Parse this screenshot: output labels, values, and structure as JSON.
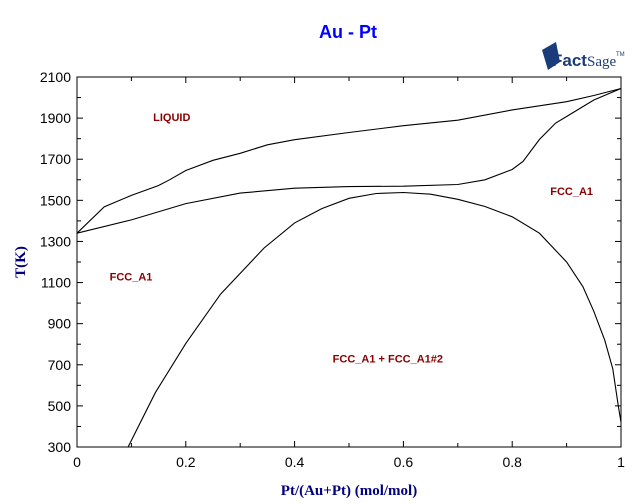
{
  "chart_data": {
    "type": "line",
    "title": "Au - Pt",
    "xlabel": "Pt/(Au+Pt) (mol/mol)",
    "ylabel": "T(K)",
    "xlim": [
      0,
      1
    ],
    "ylim": [
      300,
      2100
    ],
    "xticks": [
      0,
      0.2,
      0.4,
      0.6,
      0.8,
      1
    ],
    "xtick_labels": [
      "0",
      "0.2",
      "0.4",
      "0.6",
      "0.8",
      "1"
    ],
    "yticks": [
      300,
      500,
      700,
      900,
      1100,
      1300,
      1500,
      1700,
      1900,
      2100
    ],
    "ytick_labels": [
      "300",
      "500",
      "700",
      "900",
      "1100",
      "1300",
      "1500",
      "1700",
      "1900",
      "2100"
    ],
    "grid": false,
    "line_color": "#000000",
    "series": [
      {
        "x": [
          0,
          0.05,
          0.1,
          0.15,
          0.17,
          0.2,
          0.25,
          0.3,
          0.35,
          0.4,
          0.5,
          0.6,
          0.7,
          0.8,
          0.85,
          0.9,
          0.95,
          1
        ],
        "y": [
          1340,
          1468,
          1524,
          1572,
          1600,
          1645,
          1695,
          1729,
          1770,
          1795,
          1830,
          1863,
          1890,
          1940,
          1960,
          1980,
          2010,
          2044
        ]
      },
      {
        "x": [
          0,
          0.1,
          0.2,
          0.3,
          0.4,
          0.5,
          0.6,
          0.7,
          0.75,
          0.8,
          0.82,
          0.85,
          0.88,
          0.9,
          0.95,
          1
        ],
        "y": [
          1340,
          1405,
          1484,
          1535,
          1559,
          1567,
          1569,
          1577,
          1600,
          1650,
          1690,
          1796,
          1876,
          1908,
          1988,
          2044
        ]
      },
      {
        "x": [
          0.094,
          0.144,
          0.2,
          0.264,
          0.344,
          0.4,
          0.45,
          0.5,
          0.55,
          0.6,
          0.65,
          0.7,
          0.75,
          0.8,
          0.85,
          0.9,
          0.93,
          0.95,
          0.97,
          0.985,
          0.995,
          1
        ],
        "y": [
          300,
          564,
          804,
          1044,
          1268,
          1390,
          1460,
          1510,
          1533,
          1538,
          1530,
          1505,
          1470,
          1420,
          1340,
          1200,
          1080,
          960,
          820,
          680,
          500,
          420
        ]
      }
    ],
    "annotations": [
      {
        "text": "LIQUID",
        "x": 0.14,
        "y": 1885
      },
      {
        "text": "FCC_A1",
        "x": 0.06,
        "y": 1110
      },
      {
        "text": "FCC_A1",
        "x": 0.87,
        "y": 1525
      },
      {
        "text": "FCC_A1 + FCC_A1#2",
        "x": 0.47,
        "y": 710
      }
    ]
  },
  "logo": {
    "text_bold": "Fact",
    "text_light": "Sage",
    "mark": "TM"
  }
}
